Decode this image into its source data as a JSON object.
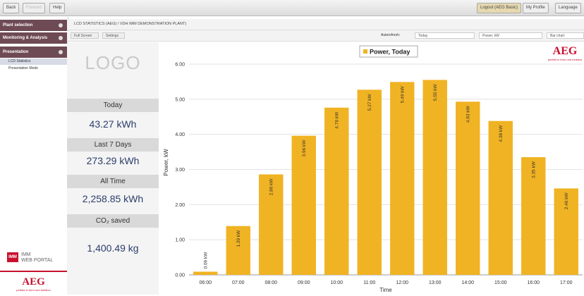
{
  "top_bar": {
    "left": [
      "Back",
      "Forward",
      "Help"
    ],
    "right": [
      "Logout (AEG Basic)",
      "My Profile",
      "Language"
    ]
  },
  "sidebar": {
    "menu": [
      "Plant selection",
      "Monitoring & Analysis",
      "Presentation"
    ],
    "submenu": [
      "LCD Statistics",
      "Presentation Mode"
    ],
    "portal": {
      "brand": "IMM",
      "name": "WEB PORTAL"
    },
    "footer_logo": "AEG",
    "footer_slogan": "perfekt in form und funktion"
  },
  "breadcrumb": "LCD STATISTICS (AEG) / VDH IMM DEMONSTRATION PLANT)",
  "toolbar": {
    "buttons": [
      "Full Screen",
      "Settings"
    ],
    "autorefresh": "Autorefresh:",
    "period": "Today",
    "measure": "Power, kW",
    "chart_kind": "Bar chart"
  },
  "stats": {
    "logo": "LOGO",
    "items": [
      {
        "label": "Today",
        "value": "43.27 kWh"
      },
      {
        "label": "Last 7 Days",
        "value": "273.29 kWh"
      },
      {
        "label": "All Time",
        "value": "2,258.85 kWh"
      },
      {
        "label": "CO₂ saved",
        "value": "1,400.49 kg"
      }
    ]
  },
  "brand_logo": {
    "name": "AEG",
    "slogan": "perfekt in form und funktion"
  },
  "chart_data": {
    "type": "bar",
    "legend": "Power, Today",
    "y_label": "Power, kW",
    "x_label": "Time",
    "color": "#f0b323",
    "categories": [
      "06:00",
      "07:00",
      "08:00",
      "09:00",
      "10:00",
      "11:00",
      "12:00",
      "13:00",
      "14:00",
      "15:00",
      "16:00",
      "17:00"
    ],
    "values": [
      0.09,
      1.39,
      2.86,
      3.96,
      4.76,
      5.27,
      5.49,
      5.55,
      4.93,
      4.38,
      3.35,
      2.46
    ],
    "value_labels": [
      "0.09 kW",
      "1.39 kW",
      "2.86 kW",
      "3.96 kW",
      "4.76 kW",
      "5.27 kW",
      "5.49 kW",
      "5.55 kW",
      "4.93 kW",
      "4.38 kW",
      "3.35 kW",
      "2.46 kW"
    ],
    "ylim": [
      0,
      6.4
    ],
    "yticks": [
      {
        "value": 0,
        "label": "0.00"
      },
      {
        "value": 1,
        "label": "1.00"
      },
      {
        "value": 2,
        "label": "2.00"
      },
      {
        "value": 3,
        "label": "3.00"
      },
      {
        "value": 4,
        "label": "4.00"
      },
      {
        "value": 5,
        "label": "5.00"
      },
      {
        "value": 6,
        "label": "6.00"
      }
    ],
    "grid": true
  }
}
